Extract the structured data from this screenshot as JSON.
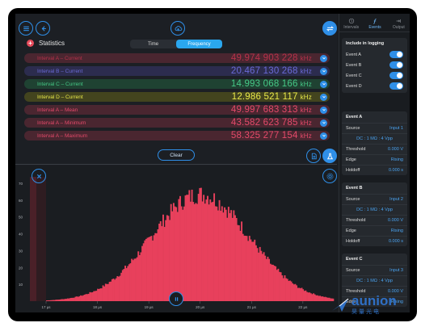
{
  "statistics": {
    "title": "Statistics",
    "segments": [
      {
        "label": "Time",
        "active": false
      },
      {
        "label": "Frequency",
        "active": true
      }
    ],
    "rows": [
      {
        "label": "Interval A – Current",
        "value": "49.974 903 228",
        "unit": "kHz",
        "color": "#b6324a",
        "bg": "#4a2630"
      },
      {
        "label": "Interval B – Current",
        "value": "20.467 130 268",
        "unit": "kHz",
        "color": "#6a6ad6",
        "bg": "#2c2c4e"
      },
      {
        "label": "Interval C – Current",
        "value": "14.993 068 166",
        "unit": "kHz",
        "color": "#46c886",
        "bg": "#1f4232"
      },
      {
        "label": "Interval D – Current",
        "value": "12.986 521 117",
        "unit": "kHz",
        "color": "#e8e84a",
        "bg": "#43441e"
      },
      {
        "label": "Interval A – Mean",
        "value": "49.997 683 313",
        "unit": "kHz",
        "color": "#e44a6a",
        "bg": "#4a2630"
      },
      {
        "label": "Interval A – Minimum",
        "value": "43.582 623 785",
        "unit": "kHz",
        "color": "#e44a6a",
        "bg": "#4a2630"
      },
      {
        "label": "Interval A – Maximum",
        "value": "58.325 277 154",
        "unit": "kHz",
        "color": "#e44a6a",
        "bg": "#4a2630"
      }
    ],
    "clear_label": "Clear"
  },
  "histogram": {
    "y_ticks": [
      "70",
      "60",
      "50",
      "40",
      "30",
      "20",
      "10"
    ],
    "x_ticks": [
      "17 µs",
      "18 µs",
      "19 µs",
      "20 µs",
      "21 µs",
      "22 µs"
    ],
    "peak_count": 64,
    "center_us": 20.0,
    "sigma_us": 0.95,
    "color": "#e8405c"
  },
  "sidebar": {
    "tabs": [
      {
        "label": "Intervals",
        "icon": "clock-icon",
        "active": false
      },
      {
        "label": "Events",
        "icon": "function-icon",
        "active": true
      },
      {
        "label": "Output",
        "icon": "output-icon",
        "active": false
      }
    ],
    "logging": {
      "title": "Include in logging",
      "items": [
        "Event A",
        "Event B",
        "Event C",
        "Event D"
      ]
    },
    "events": [
      {
        "title": "Event A",
        "source_label": "Source",
        "source": "Input 1",
        "coupling": "DC : 1 MΩ : 4 Vpp",
        "threshold_label": "Threshold",
        "threshold": "0.000 V",
        "edge_label": "Edge",
        "edge": "Rising",
        "holdoff_label": "Holdoff",
        "holdoff": "0.000 s"
      },
      {
        "title": "Event B",
        "source_label": "Source",
        "source": "Input 2",
        "coupling": "DC : 1 MΩ : 4 Vpp",
        "threshold_label": "Threshold",
        "threshold": "0.000 V",
        "edge_label": "Edge",
        "edge": "Rising",
        "holdoff_label": "Holdoff",
        "holdoff": "0.000 s"
      },
      {
        "title": "Event C",
        "source_label": "Source",
        "source": "Input 3",
        "coupling": "DC : 1 MΩ : 4 Vpp",
        "threshold_label": "Threshold",
        "threshold": "0.000 V",
        "edge_label": "Edge",
        "edge": "Rising"
      }
    ]
  },
  "watermark": {
    "brand": "aunion",
    "chinese": "昊量光电"
  }
}
